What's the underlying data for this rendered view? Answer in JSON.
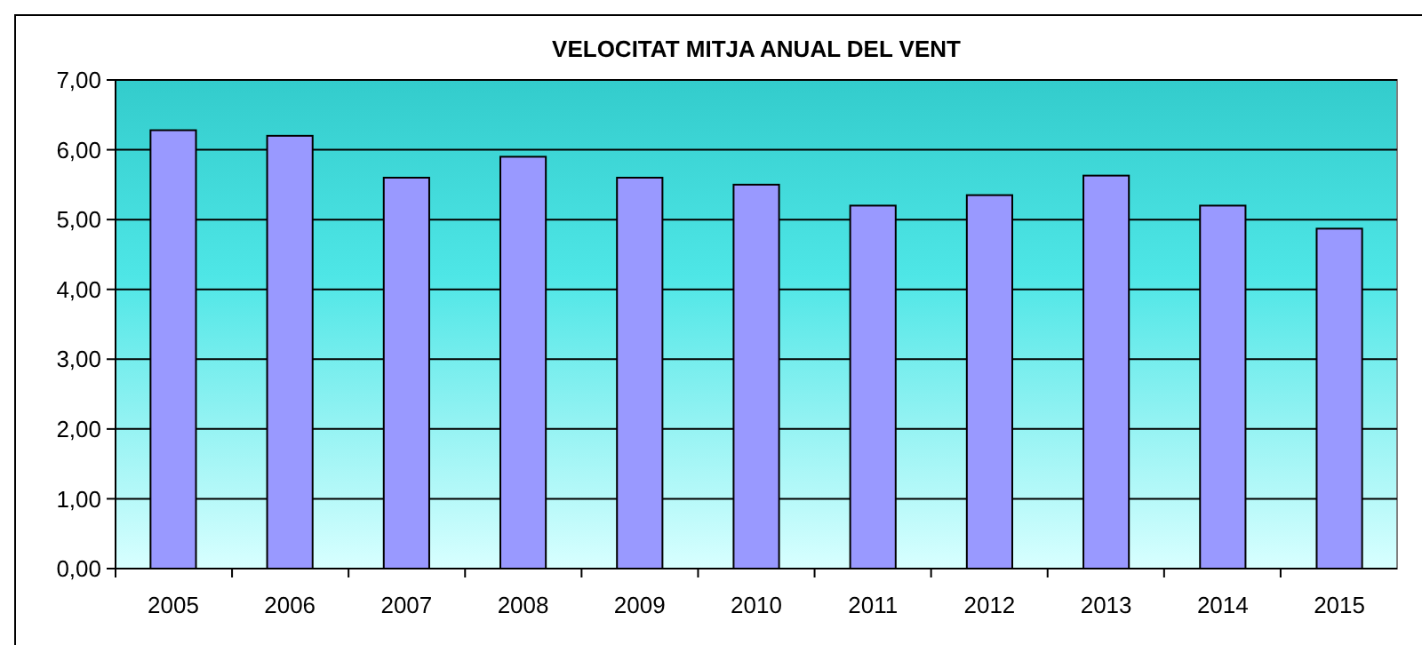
{
  "chart_data": {
    "type": "bar",
    "title": "VELOCITAT MITJA ANUAL DEL VENT",
    "categories": [
      "2005",
      "2006",
      "2007",
      "2008",
      "2009",
      "2010",
      "2011",
      "2012",
      "2013",
      "2014",
      "2015"
    ],
    "values": [
      6.28,
      6.2,
      5.6,
      5.9,
      5.6,
      5.5,
      5.2,
      5.35,
      5.63,
      5.2,
      4.87
    ],
    "color": "#9999ff",
    "ylim": [
      0,
      7
    ],
    "yticks": [
      {
        "value": 0,
        "label": "0,00"
      },
      {
        "value": 1,
        "label": "1,00"
      },
      {
        "value": 2,
        "label": "2,00"
      },
      {
        "value": 3,
        "label": "3,00"
      },
      {
        "value": 4,
        "label": "4,00"
      },
      {
        "value": 5,
        "label": "5,00"
      },
      {
        "value": 6,
        "label": "6,00"
      },
      {
        "value": 7,
        "label": "7,00"
      }
    ],
    "grid": "y"
  }
}
